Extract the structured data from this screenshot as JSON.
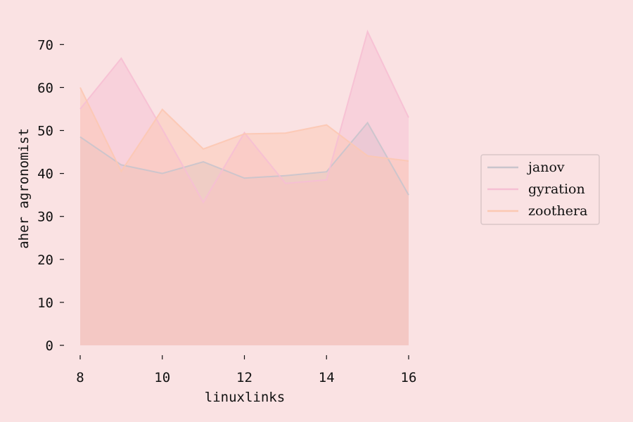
{
  "chart_data": {
    "type": "area",
    "title": "",
    "xlabel": "linuxlinks",
    "ylabel": "aher agronomist",
    "x": [
      8,
      9,
      10,
      11,
      12,
      13,
      14,
      15,
      16
    ],
    "xticks": [
      8,
      10,
      12,
      14,
      16
    ],
    "yticks": [
      0,
      10,
      20,
      30,
      40,
      50,
      60,
      70
    ],
    "xlim": [
      8,
      16
    ],
    "ylim": [
      0,
      73
    ],
    "grid": false,
    "legend_position": "right",
    "series": [
      {
        "name": "janov",
        "color": "#c9c4cc",
        "values": [
          48.5,
          42.0,
          40.0,
          42.7,
          38.9,
          39.5,
          40.4,
          51.8,
          35.0
        ]
      },
      {
        "name": "gyration",
        "color": "#f6bfd3",
        "values": [
          55.0,
          66.8,
          50.3,
          33.3,
          49.5,
          37.7,
          38.5,
          73.0,
          53.0
        ]
      },
      {
        "name": "zoothera",
        "color": "#fcc8b3",
        "values": [
          60.0,
          40.5,
          54.9,
          45.7,
          49.2,
          49.4,
          51.3,
          44.1,
          42.9
        ]
      }
    ]
  }
}
